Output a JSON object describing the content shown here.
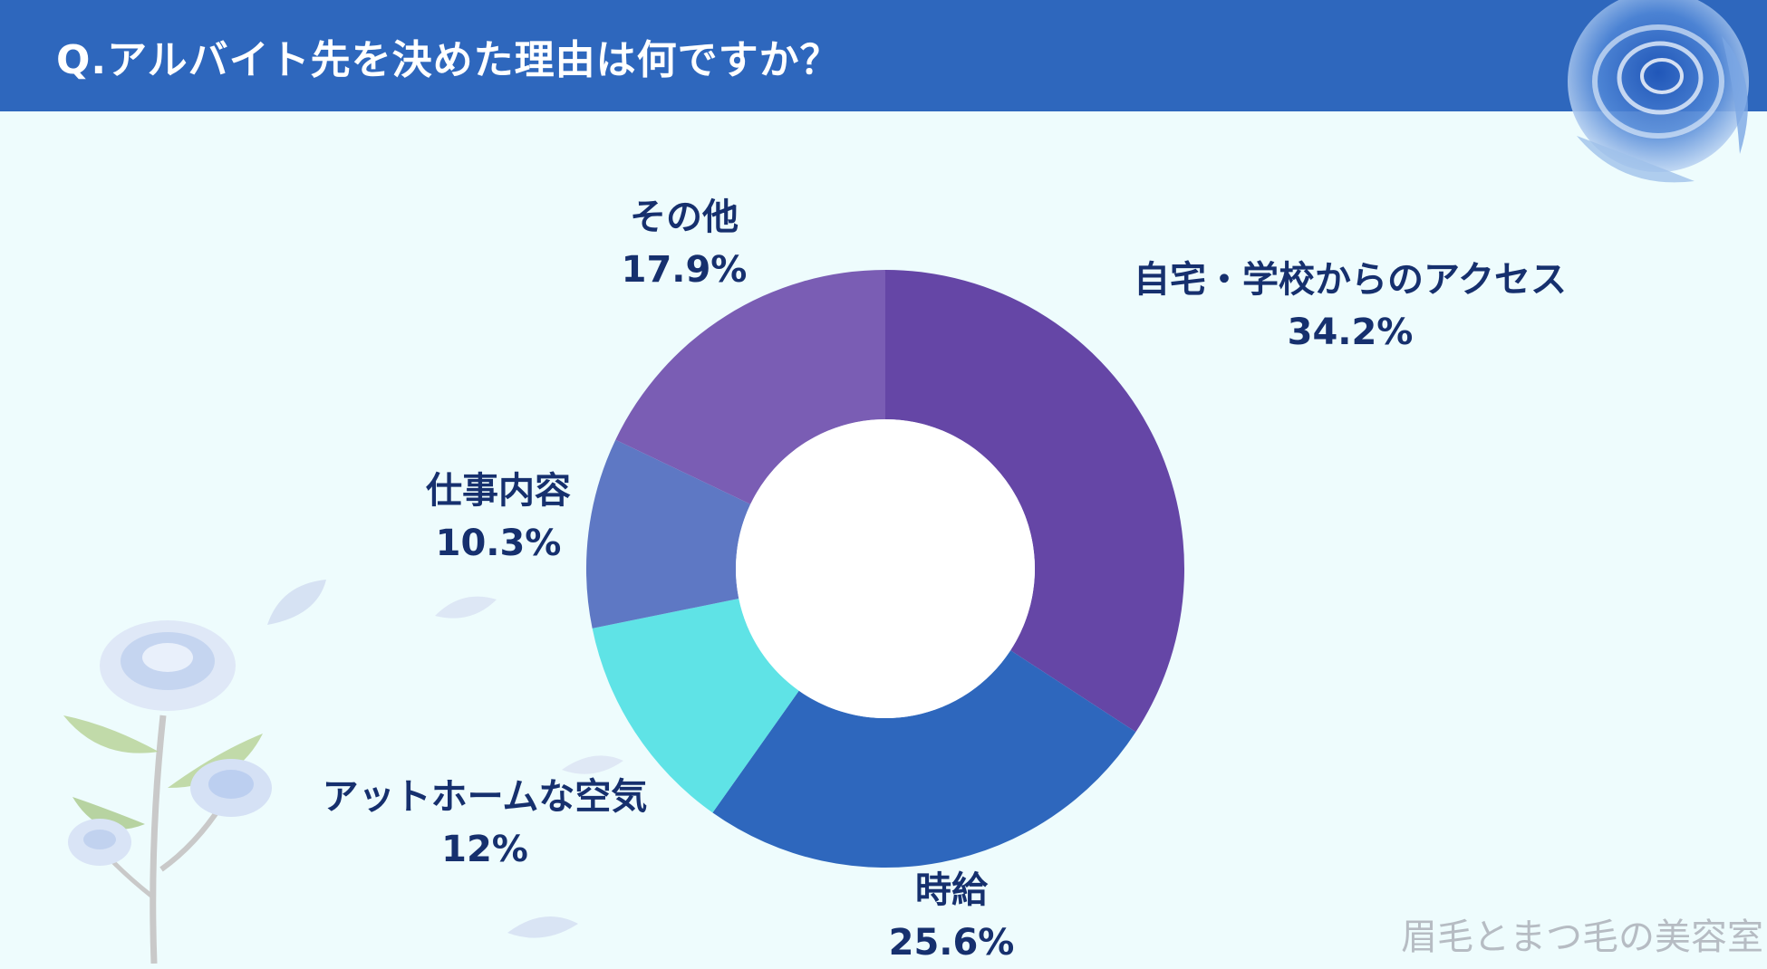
{
  "header": {
    "title": "Q.アルバイト先を決めた理由は何ですか？"
  },
  "colors": {
    "header_bg": "#2e67bd",
    "background": "#eefcfd",
    "label_text": "#16306e"
  },
  "chart_data": {
    "type": "pie",
    "variant": "donut",
    "title": "Q.アルバイト先を決めた理由は何ですか？",
    "slices": [
      {
        "label": "自宅・学校からのアクセス",
        "value": 34.2,
        "value_label": "34.2%",
        "color": "#6546a6"
      },
      {
        "label": "時給",
        "value": 25.6,
        "value_label": "25.6%",
        "color": "#2e67bd"
      },
      {
        "label": "アットホームな空気",
        "value": 12,
        "value_label": "12%",
        "color": "#5fe3e6"
      },
      {
        "label": "仕事内容",
        "value": 10.3,
        "value_label": "10.3%",
        "color": "#5e78c4"
      },
      {
        "label": "その他",
        "value": 17.9,
        "value_label": "17.9%",
        "color": "#7a5db4"
      }
    ],
    "start_angle": "12 o'clock",
    "direction": "clockwise",
    "legend": "none (labels beside slices)"
  },
  "watermark": {
    "text": "眉毛とまつ毛の美容室"
  },
  "decorations": {
    "top_right": "blue-rose-icon",
    "bottom_left": "white-rose-branch-icon",
    "petals": "petal-icon"
  }
}
